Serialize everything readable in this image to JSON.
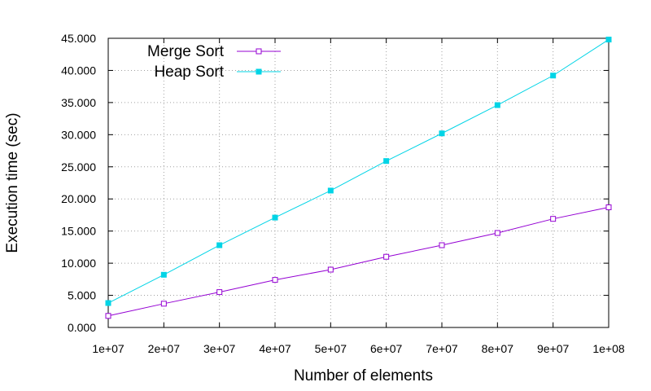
{
  "chart_data": {
    "type": "line",
    "title": "",
    "xlabel": "Number of elements",
    "ylabel": "Execution time (sec)",
    "x": [
      10000000,
      20000000,
      30000000,
      40000000,
      50000000,
      60000000,
      70000000,
      80000000,
      90000000,
      100000000
    ],
    "x_tick_labels": [
      "1e+07",
      "2e+07",
      "3e+07",
      "4e+07",
      "5e+07",
      "6e+07",
      "7e+07",
      "8e+07",
      "9e+07",
      "1e+08"
    ],
    "y_tick_values": [
      0,
      5,
      10,
      15,
      20,
      25,
      30,
      35,
      40,
      45
    ],
    "y_tick_labels": [
      "0.000",
      "5.000",
      "10.000",
      "15.000",
      "20.000",
      "25.000",
      "30.000",
      "35.000",
      "40.000",
      "45.000"
    ],
    "xlim": [
      10000000,
      100000000
    ],
    "ylim": [
      0,
      45
    ],
    "grid": true,
    "legend_position": "top-left",
    "series": [
      {
        "name": "Merge Sort",
        "color": "#9400d3",
        "marker": "open-square",
        "values": [
          1.8,
          3.7,
          5.5,
          7.4,
          9.0,
          11.0,
          12.8,
          14.7,
          16.9,
          18.7
        ]
      },
      {
        "name": "Heap Sort",
        "color": "#00d4e6",
        "marker": "filled-square",
        "values": [
          3.8,
          8.2,
          12.8,
          17.1,
          21.3,
          25.9,
          30.2,
          34.6,
          39.2,
          44.8
        ]
      }
    ]
  }
}
